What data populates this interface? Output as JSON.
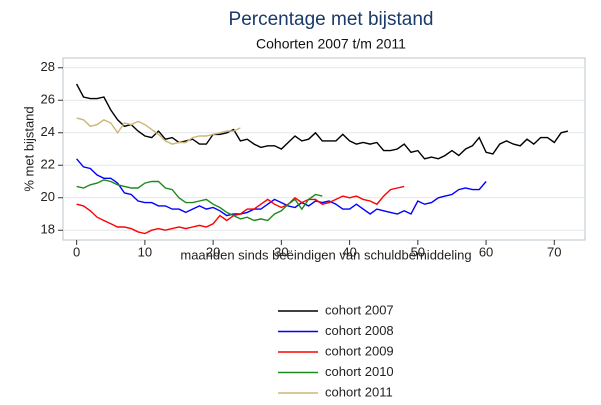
{
  "chart_data": {
    "type": "line",
    "title": "Percentage met bijstand",
    "subtitle": "Cohorten 2007 t/m 2011",
    "x_label": "maanden sinds beëindigen van schuldbemiddeling",
    "y_label": "% met bijstand",
    "x": [
      0,
      1,
      2,
      3,
      4,
      5,
      6,
      7,
      8,
      9,
      10,
      11,
      12,
      13,
      14,
      15,
      16,
      17,
      18,
      19,
      20,
      21,
      22,
      23,
      24,
      25,
      26,
      27,
      28,
      29,
      30,
      31,
      32,
      33,
      34,
      35,
      36,
      37,
      38,
      39,
      40,
      41,
      42,
      43,
      44,
      45,
      46,
      47,
      48,
      49,
      50,
      51,
      52,
      53,
      54,
      55,
      56,
      57,
      58,
      59,
      60,
      61,
      62,
      63,
      64,
      65,
      66,
      67,
      68,
      69,
      70,
      71,
      72
    ],
    "xlim": [
      -2,
      74.5
    ],
    "xticks": [
      0,
      10,
      20,
      30,
      40,
      50,
      60,
      70
    ],
    "ylim": [
      17.4,
      28.6
    ],
    "yticks": [
      18,
      20,
      22,
      24,
      26,
      28
    ],
    "grid": true,
    "legend": "bottom",
    "series": [
      {
        "name": "cohort 2007",
        "color": "#000000",
        "values": [
          27,
          26.2,
          26.1,
          26.1,
          26.2,
          25.4,
          24.8,
          24.4,
          24.5,
          24.1,
          23.8,
          23.7,
          24.1,
          23.6,
          23.7,
          23.4,
          23.5,
          23.6,
          23.3,
          23.3,
          23.9,
          23.9,
          24.0,
          24.2,
          23.5,
          23.6,
          23.3,
          23.1,
          23.2,
          23.2,
          23.0,
          23.4,
          23.8,
          23.5,
          23.6,
          24.0,
          23.5,
          23.5,
          23.5,
          23.9,
          23.5,
          23.3,
          23.4,
          23.3,
          23.4,
          22.9,
          22.9,
          23.0,
          23.3,
          22.8,
          22.9,
          22.4,
          22.5,
          22.4,
          22.6,
          22.9,
          22.6,
          23.0,
          23.2,
          23.7,
          22.8,
          22.7,
          23.3,
          23.5,
          23.3,
          23.2,
          23.6,
          23.3,
          23.7,
          23.7,
          23.4,
          24.0,
          24.1
        ]
      },
      {
        "name": "cohort 2008",
        "color": "#0000ff",
        "values": [
          22.4,
          21.9,
          21.8,
          21.4,
          21.2,
          21.2,
          20.9,
          20.3,
          20.2,
          19.8,
          19.7,
          19.7,
          19.5,
          19.5,
          19.3,
          19.3,
          19.1,
          19.3,
          19.5,
          19.3,
          19.4,
          19.2,
          18.9,
          19.0,
          19.0,
          19.1,
          19.3,
          19.3,
          19.6,
          19.9,
          19.7,
          19.5,
          19.4,
          19.7,
          19.5,
          19.8,
          19.7,
          19.8,
          19.6,
          19.3,
          19.3,
          19.6,
          19.3,
          19.0,
          19.3,
          19.2,
          19.1,
          19.0,
          19.2,
          19.0,
          19.8,
          19.6,
          19.7,
          20.0,
          20.1,
          20.2,
          20.5,
          20.6,
          20.5,
          20.5,
          21.0,
          null,
          null,
          null,
          null,
          null,
          null,
          null,
          null,
          null,
          null,
          null,
          null
        ]
      },
      {
        "name": "cohort 2009",
        "color": "#ff0000",
        "values": [
          19.6,
          19.5,
          19.2,
          18.8,
          18.6,
          18.4,
          18.2,
          18.2,
          18.1,
          17.9,
          17.8,
          18.0,
          18.1,
          18.0,
          18.1,
          18.2,
          18.1,
          18.2,
          18.3,
          18.2,
          18.4,
          18.9,
          18.6,
          18.9,
          19.0,
          19.3,
          19.3,
          19.6,
          19.9,
          19.6,
          19.4,
          19.6,
          20.0,
          19.7,
          19.9,
          19.9,
          19.6,
          19.7,
          19.9,
          20.1,
          20.0,
          20.1,
          19.9,
          19.8,
          19.6,
          20.1,
          20.5,
          20.6,
          20.7,
          null,
          null,
          null,
          null,
          null,
          null,
          null,
          null,
          null,
          null,
          null,
          null,
          null,
          null,
          null,
          null,
          null,
          null,
          null,
          null,
          null,
          null,
          null,
          null
        ]
      },
      {
        "name": "cohort 2010",
        "color": "#1e8a1e",
        "values": [
          20.7,
          20.6,
          20.8,
          20.9,
          21.1,
          21.0,
          20.8,
          20.7,
          20.6,
          20.6,
          20.9,
          21.0,
          21.0,
          20.6,
          20.5,
          20.0,
          19.7,
          19.7,
          19.8,
          19.9,
          19.6,
          19.4,
          19.1,
          18.9,
          18.7,
          18.8,
          18.6,
          18.7,
          18.6,
          19.0,
          19.2,
          19.6,
          19.9,
          19.3,
          19.9,
          20.2,
          20.1,
          null,
          null,
          null,
          null,
          null,
          null,
          null,
          null,
          null,
          null,
          null,
          null,
          null,
          null,
          null,
          null,
          null,
          null,
          null,
          null,
          null,
          null,
          null,
          null,
          null,
          null,
          null,
          null,
          null,
          null,
          null,
          null,
          null,
          null,
          null,
          null
        ]
      },
      {
        "name": "cohort 2011",
        "color": "#cdb679",
        "values": [
          24.9,
          24.8,
          24.4,
          24.5,
          24.8,
          24.6,
          24.0,
          24.6,
          24.5,
          24.7,
          24.5,
          24.2,
          23.9,
          23.5,
          23.3,
          23.4,
          23.4,
          23.7,
          23.8,
          23.8,
          23.9,
          24.0,
          24.1,
          24.1,
          24.3,
          null,
          null,
          null,
          null,
          null,
          null,
          null,
          null,
          null,
          null,
          null,
          null,
          null,
          null,
          null,
          null,
          null,
          null,
          null,
          null,
          null,
          null,
          null,
          null,
          null,
          null,
          null,
          null,
          null,
          null,
          null,
          null,
          null,
          null,
          null,
          null,
          null,
          null,
          null,
          null,
          null,
          null,
          null,
          null,
          null,
          null,
          null,
          null
        ]
      }
    ]
  }
}
